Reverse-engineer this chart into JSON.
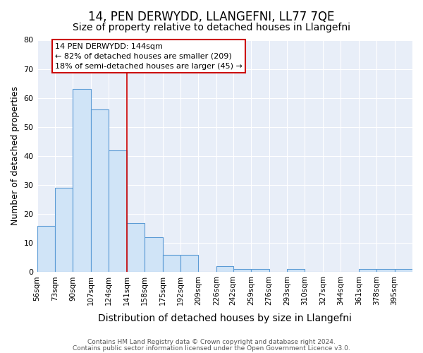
{
  "title": "14, PEN DERWYDD, LLANGEFNI, LL77 7QE",
  "subtitle": "Size of property relative to detached houses in Llangefni",
  "xlabel": "Distribution of detached houses by size in Llangefni",
  "ylabel": "Number of detached properties",
  "bin_labels": [
    "56sqm",
    "73sqm",
    "90sqm",
    "107sqm",
    "124sqm",
    "141sqm",
    "158sqm",
    "175sqm",
    "192sqm",
    "209sqm",
    "226sqm",
    "242sqm",
    "259sqm",
    "276sqm",
    "293sqm",
    "310sqm",
    "327sqm",
    "344sqm",
    "361sqm",
    "378sqm",
    "395sqm"
  ],
  "bin_edges": [
    56,
    73,
    90,
    107,
    124,
    141,
    158,
    175,
    192,
    209,
    226,
    242,
    259,
    276,
    293,
    310,
    327,
    344,
    361,
    378,
    395,
    412
  ],
  "bar_heights": [
    16,
    29,
    63,
    56,
    42,
    17,
    12,
    6,
    6,
    0,
    2,
    1,
    1,
    0,
    1,
    0,
    0,
    0,
    1,
    1,
    1
  ],
  "bar_color": "#d0e4f7",
  "bar_edge_color": "#5b9bd5",
  "property_line_x": 141,
  "property_line_color": "#cc0000",
  "annotation_text": "14 PEN DERWYDD: 144sqm\n← 82% of detached houses are smaller (209)\n18% of semi-detached houses are larger (45) →",
  "annotation_box_color": "#cc0000",
  "ylim": [
    0,
    80
  ],
  "yticks": [
    0,
    10,
    20,
    30,
    40,
    50,
    60,
    70,
    80
  ],
  "bg_color": "#e8eef8",
  "grid_color": "#ffffff",
  "fig_bg_color": "#ffffff",
  "footer_line1": "Contains HM Land Registry data © Crown copyright and database right 2024.",
  "footer_line2": "Contains public sector information licensed under the Open Government Licence v3.0.",
  "title_fontsize": 12,
  "subtitle_fontsize": 10,
  "ylabel_fontsize": 9,
  "xlabel_fontsize": 10
}
